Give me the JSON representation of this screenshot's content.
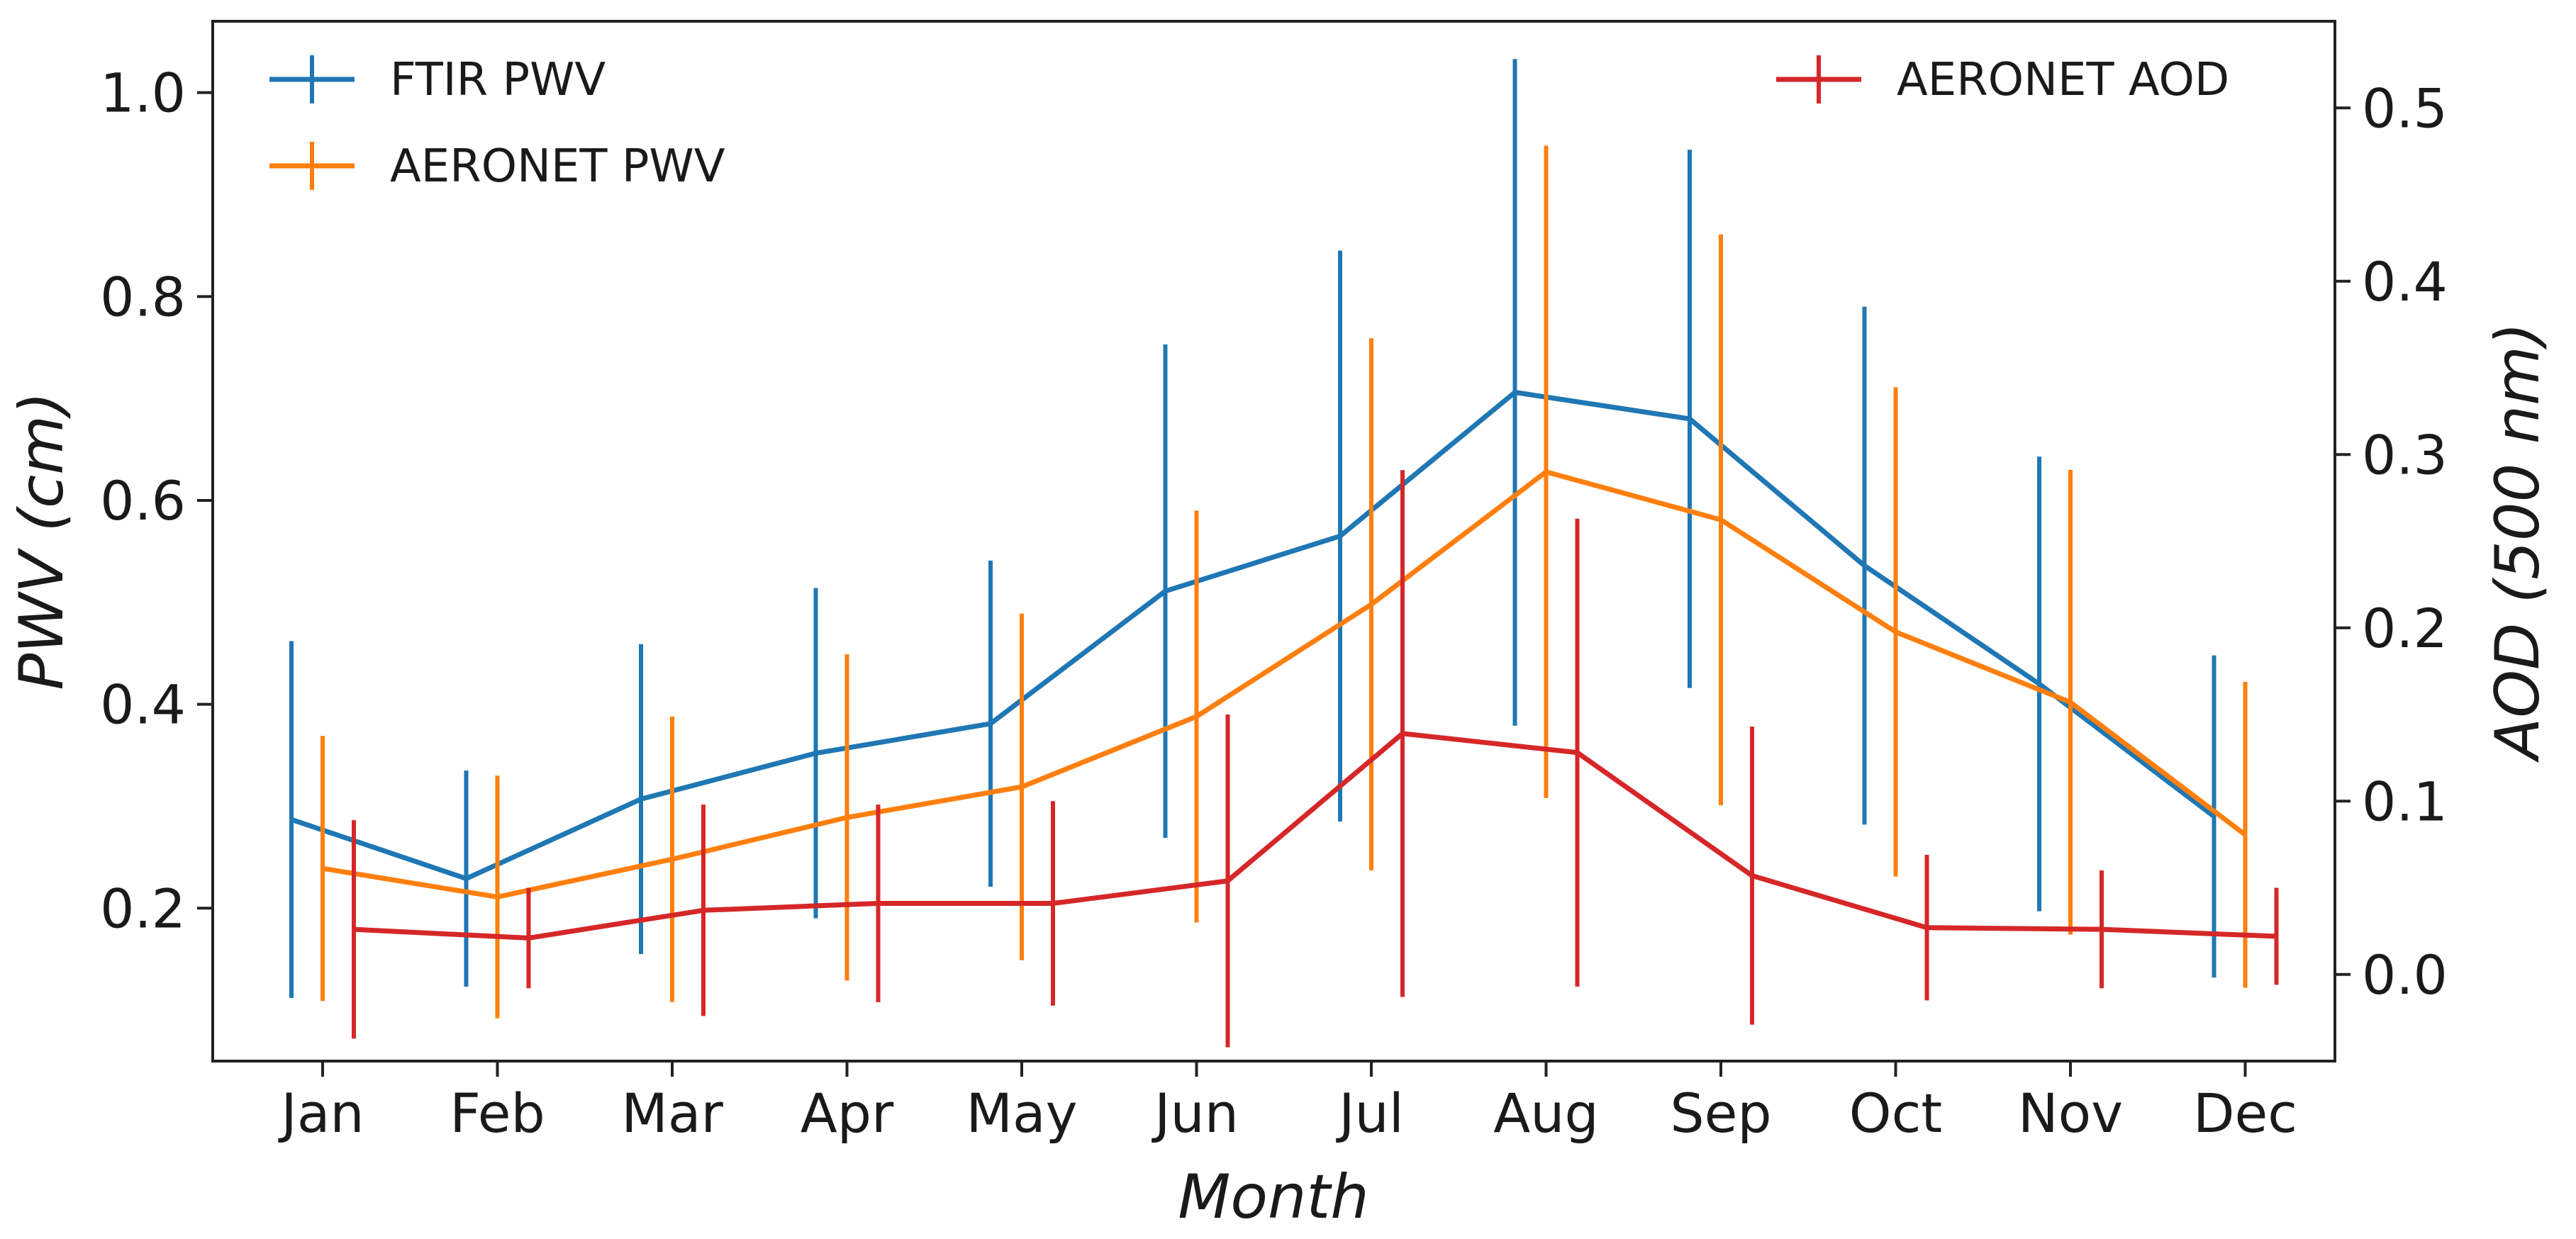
{
  "chart_data": {
    "type": "line",
    "xlabel": "Month",
    "ylabel_left": "PWV (cm)",
    "ylabel_right": "AOD (500 nm)",
    "categories": [
      "Jan",
      "Feb",
      "Mar",
      "Apr",
      "May",
      "Jun",
      "Jul",
      "Aug",
      "Sep",
      "Oct",
      "Nov",
      "Dec"
    ],
    "ylim_left": [
      0.05,
      1.07
    ],
    "ylim_right": [
      -0.05,
      0.55
    ],
    "yticks_left": [
      "0.2",
      "0.4",
      "0.6",
      "0.8",
      "1.0"
    ],
    "yticks_left_values": [
      0.2,
      0.4,
      0.6,
      0.8,
      1.0
    ],
    "yticks_right": [
      "0.0",
      "0.1",
      "0.2",
      "0.3",
      "0.4",
      "0.5"
    ],
    "yticks_right_values": [
      0.0,
      0.1,
      0.2,
      0.3,
      0.4,
      0.5
    ],
    "grid": false,
    "legend_left_position": "top-left",
    "legend_right_position": "top-right",
    "series": [
      {
        "name": "FTIR PWV",
        "axis": "left",
        "color": "#1f77b4",
        "x_offset": -0.2,
        "values": [
          0.287,
          0.229,
          0.307,
          0.352,
          0.381,
          0.511,
          0.565,
          0.706,
          0.68,
          0.536,
          0.42,
          0.29
        ],
        "error": [
          0.175,
          0.106,
          0.152,
          0.162,
          0.16,
          0.242,
          0.28,
          0.327,
          0.264,
          0.254,
          0.223,
          0.158
        ]
      },
      {
        "name": "AERONET PWV",
        "axis": "left",
        "color": "#ff7f0e",
        "x_offset": 0,
        "values": [
          0.239,
          0.211,
          0.248,
          0.289,
          0.319,
          0.388,
          0.498,
          0.628,
          0.581,
          0.471,
          0.402,
          0.272
        ],
        "error": [
          0.13,
          0.119,
          0.14,
          0.16,
          0.17,
          0.202,
          0.261,
          0.32,
          0.28,
          0.24,
          0.228,
          0.15
        ]
      },
      {
        "name": "AERONET AOD",
        "axis": "right",
        "color": "#d62728",
        "x_offset": 0.2,
        "values": [
          0.026,
          0.021,
          0.037,
          0.041,
          0.041,
          0.054,
          0.139,
          0.128,
          0.057,
          0.027,
          0.026,
          0.022
        ],
        "error": [
          0.063,
          0.029,
          0.061,
          0.057,
          0.059,
          0.096,
          0.152,
          0.135,
          0.086,
          0.042,
          0.034,
          0.028
        ]
      }
    ]
  }
}
